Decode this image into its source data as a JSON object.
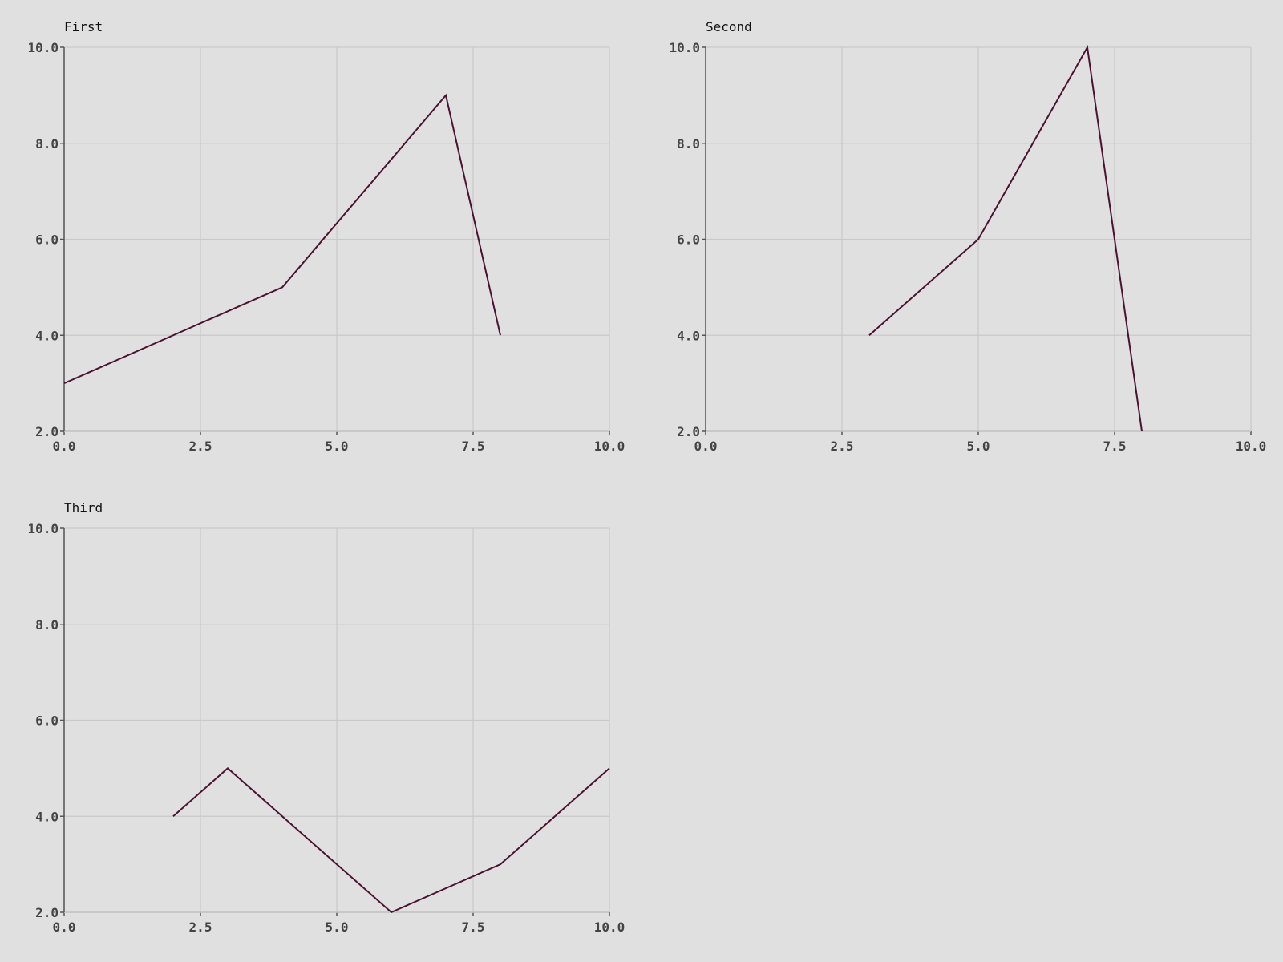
{
  "chart_data": [
    {
      "type": "line",
      "title": "First",
      "xlim": [
        0,
        10
      ],
      "ylim": [
        2,
        10
      ],
      "x_ticks": [
        "0.0",
        "2.5",
        "5.0",
        "7.5",
        "10.0"
      ],
      "y_ticks": [
        "2.0",
        "4.0",
        "6.0",
        "8.0",
        "10.0"
      ],
      "grid": true,
      "series": [
        {
          "x": [
            0,
            4,
            7,
            8
          ],
          "y": [
            3,
            5,
            9,
            4
          ],
          "color": "#4a1230"
        }
      ]
    },
    {
      "type": "line",
      "title": "Second",
      "xlim": [
        0,
        10
      ],
      "ylim": [
        2,
        10
      ],
      "x_ticks": [
        "0.0",
        "2.5",
        "5.0",
        "7.5",
        "10.0"
      ],
      "y_ticks": [
        "2.0",
        "4.0",
        "6.0",
        "8.0",
        "10.0"
      ],
      "grid": true,
      "series": [
        {
          "x": [
            3,
            5,
            7,
            8
          ],
          "y": [
            4,
            6,
            10,
            2
          ],
          "color": "#4a1230"
        }
      ]
    },
    {
      "type": "line",
      "title": "Third",
      "xlim": [
        0,
        10
      ],
      "ylim": [
        2,
        10
      ],
      "x_ticks": [
        "0.0",
        "2.5",
        "5.0",
        "7.5",
        "10.0"
      ],
      "y_ticks": [
        "2.0",
        "4.0",
        "6.0",
        "8.0",
        "10.0"
      ],
      "grid": true,
      "series": [
        {
          "x": [
            2,
            3,
            6,
            8,
            10
          ],
          "y": [
            4,
            5,
            2,
            3,
            5
          ],
          "color": "#4a1230"
        }
      ]
    }
  ]
}
